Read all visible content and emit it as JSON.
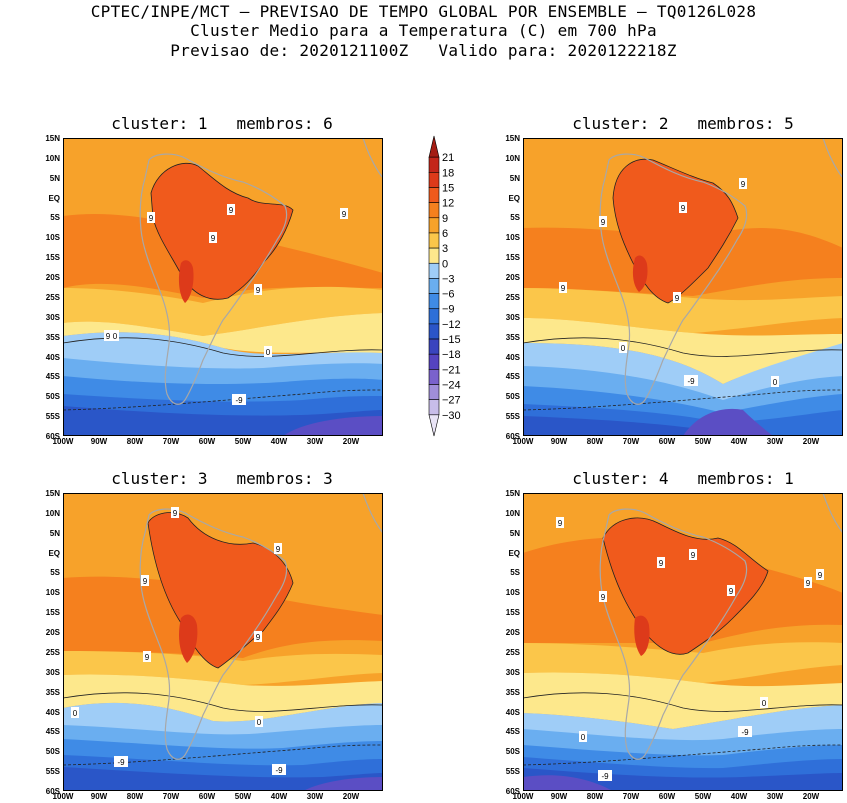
{
  "header": {
    "line1": "CPTEC/INPE/MCT – PREVISAO DE TEMPO GLOBAL POR ENSEMBLE – TQ0126L028",
    "line2": "Cluster Medio para a Temperatura (C) em 700 hPa",
    "line3": "Previsao de: 2020121100Z   Valido para: 2020122218Z"
  },
  "axes": {
    "lat_labels": [
      "15N",
      "10N",
      "5N",
      "EQ",
      "5S",
      "10S",
      "15S",
      "20S",
      "25S",
      "30S",
      "35S",
      "40S",
      "45S",
      "50S",
      "55S",
      "60S"
    ],
    "lon_labels": [
      "100W",
      "90W",
      "80W",
      "70W",
      "60W",
      "50W",
      "40W",
      "30W",
      "20W"
    ]
  },
  "colorbar": {
    "labels": [
      "21",
      "18",
      "15",
      "12",
      "9",
      "6",
      "3",
      "0",
      "−3",
      "−6",
      "−9",
      "−12",
      "−15",
      "−18",
      "−21",
      "−24",
      "−27",
      "−30"
    ],
    "colors": [
      "#a41d14",
      "#c3261a",
      "#dd3a1a",
      "#f05a1c",
      "#f5801e",
      "#f7a22a",
      "#fbc64a",
      "#fde88c",
      "#9fcdf7",
      "#6aaef0",
      "#3f8be6",
      "#2e6fd8",
      "#2b55c8",
      "#3a44be",
      "#5543c0",
      "#7a62cc",
      "#a08ed9",
      "#c8bde9",
      "#e9e4f6"
    ]
  },
  "panels": [
    {
      "title": "cluster: 1   membros: 6",
      "labels": [
        "9",
        "9",
        "9",
        "9",
        "9",
        "9",
        "0",
        "0",
        "-9"
      ]
    },
    {
      "title": "cluster: 2   membros: 5",
      "labels": [
        "9",
        "9",
        "9",
        "9",
        "9",
        "0",
        "0",
        "-9"
      ]
    },
    {
      "title": "cluster: 3   membros: 3",
      "labels": [
        "9",
        "9",
        "9",
        "9",
        "9",
        "0",
        "0",
        "-9",
        "-9"
      ]
    },
    {
      "title": "cluster: 4   membros: 1",
      "labels": [
        "9",
        "9",
        "9",
        "9",
        "9",
        "9",
        "9",
        "0",
        "0",
        "-9",
        "-9"
      ]
    }
  ]
}
